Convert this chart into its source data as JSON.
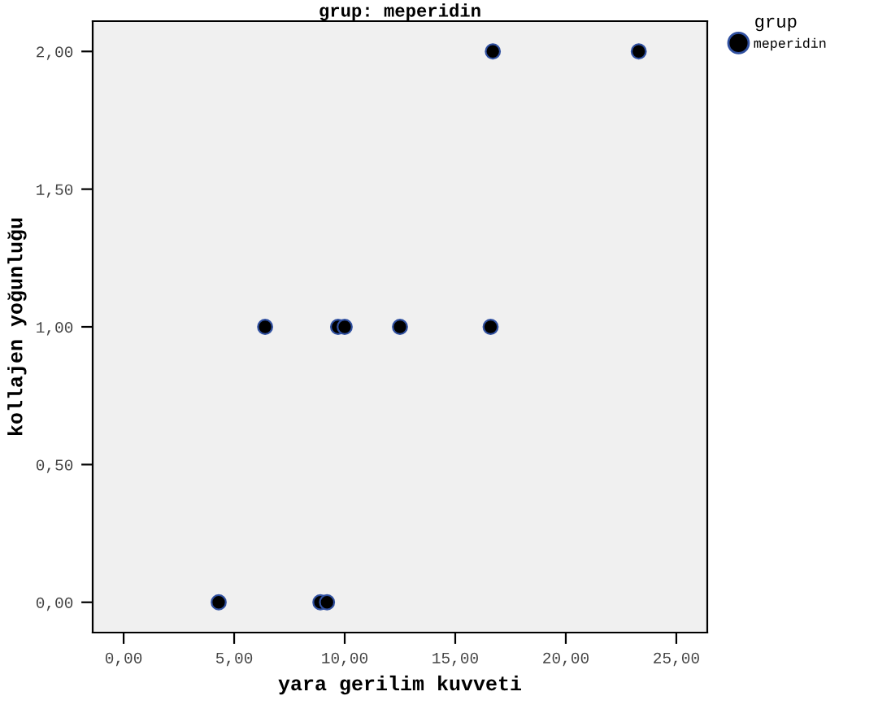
{
  "chart_data": {
    "type": "scatter",
    "title": "grup: meperidin",
    "xlabel": "yara gerilim kuvveti",
    "ylabel": "kollajen yoğunluğu",
    "legend_title": "grup",
    "legend": "top right",
    "grid": false,
    "marker": "circle",
    "xlim": [
      -1.4,
      26.4
    ],
    "ylim": [
      -0.11,
      2.11
    ],
    "xticks": [
      {
        "value": 0,
        "label": "0,00"
      },
      {
        "value": 5,
        "label": "5,00"
      },
      {
        "value": 10,
        "label": "10,00"
      },
      {
        "value": 15,
        "label": "15,00"
      },
      {
        "value": 20,
        "label": "20,00"
      },
      {
        "value": 25,
        "label": "25,00"
      }
    ],
    "yticks": [
      {
        "value": 0,
        "label": "0,00"
      },
      {
        "value": 0.5,
        "label": "0,50"
      },
      {
        "value": 1,
        "label": "1,00"
      },
      {
        "value": 1.5,
        "label": "1,50"
      },
      {
        "value": 2,
        "label": "2,00"
      }
    ],
    "series": [
      {
        "name": "meperidin",
        "color": "#000000",
        "x": [
          4.3,
          8.9,
          9.2,
          6.4,
          9.7,
          10.0,
          12.5,
          16.6,
          16.7,
          23.3
        ],
        "values": [
          0,
          0,
          0,
          1,
          1,
          1,
          1,
          1,
          2,
          2
        ]
      }
    ]
  }
}
